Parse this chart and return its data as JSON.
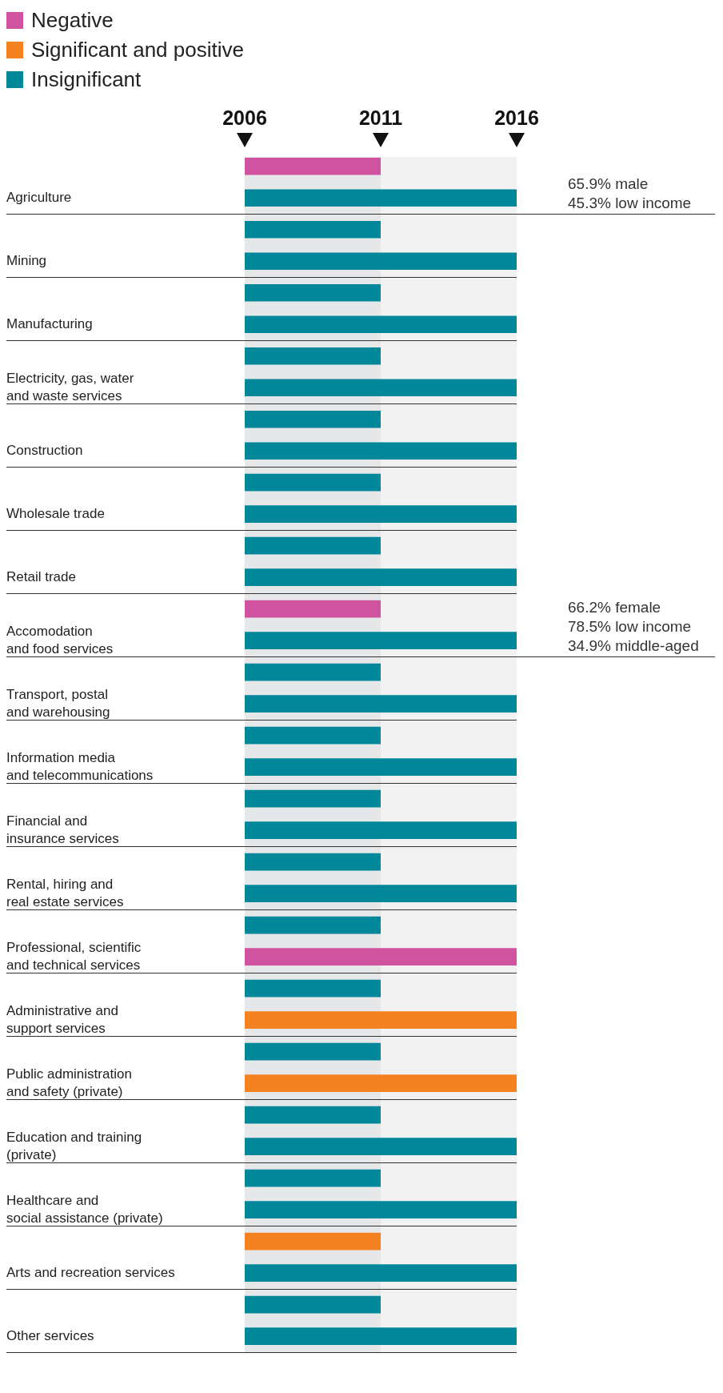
{
  "chart_data": {
    "type": "bar",
    "orientation": "horizontal",
    "stacked": true,
    "categories": [
      null,
      "Agriculture",
      null,
      "Mining",
      null,
      "Manufacturing",
      null,
      "Electricity, gas, water\nand waste services",
      null,
      "Construction",
      null,
      "Wholesale trade",
      null,
      "Retail trade",
      null,
      "Accomodation\nand food services",
      null,
      "Transport, postal\nand warehousing",
      null,
      "Information media\nand telecommunications",
      null,
      "Financial and\ninsurance services",
      null,
      "Rental, hiring and\nreal estate services",
      null,
      "Professional, scientific\nand technical services",
      null,
      "Administrative and\nsupport services",
      null,
      "Public administration\nand safety (private)",
      null,
      "Education and training\n(private)",
      null,
      "Healthcare and\nsocial assistance (private)",
      null,
      "Arts and recreation services",
      null,
      "Other services"
    ],
    "series": [
      {
        "name": "Negative",
        "color": "#cf539e",
        "values": [
          2011,
          null,
          null,
          null,
          null,
          null,
          null,
          null,
          null,
          null,
          null,
          null,
          null,
          null,
          2011,
          null,
          null,
          null,
          null,
          null,
          null,
          null,
          null,
          null,
          null,
          2016,
          null,
          null,
          null,
          null,
          null,
          null,
          null,
          null,
          null,
          null,
          null,
          null
        ]
      },
      {
        "name": "Significant and positive",
        "color": "#f58220",
        "values": [
          null,
          null,
          null,
          null,
          null,
          null,
          null,
          null,
          null,
          null,
          null,
          null,
          null,
          null,
          null,
          null,
          null,
          null,
          null,
          null,
          null,
          null,
          null,
          null,
          null,
          null,
          null,
          2016,
          null,
          2016,
          null,
          null,
          null,
          null,
          2011,
          null,
          null,
          null
        ]
      },
      {
        "name": "Insignificant",
        "color": "#00879a",
        "values": [
          null,
          2016,
          2011,
          2016,
          2011,
          2016,
          2011,
          2016,
          2011,
          2016,
          2011,
          2016,
          2011,
          2016,
          null,
          2016,
          2011,
          2016,
          2011,
          2016,
          2011,
          2016,
          2011,
          2016,
          2011,
          null,
          2011,
          null,
          2011,
          null,
          2011,
          2016,
          2011,
          2016,
          null,
          2016,
          2011,
          2016
        ]
      }
    ],
    "xlim": [
      2006,
      2016
    ],
    "xticks": [
      2006,
      2011,
      2016
    ],
    "bands": [
      {
        "axis": "x",
        "from": 2006,
        "to": 2011,
        "color": "#e6e7e9"
      },
      {
        "axis": "x",
        "from": 2011,
        "to": 2016,
        "color": "#f2f2f2"
      }
    ],
    "annotations": [
      "65.9% male\n45.3% low income",
      "66.2% female\n78.5% low income\n34.9% middle-aged"
    ],
    "grid": "y",
    "legend": "top left"
  }
}
